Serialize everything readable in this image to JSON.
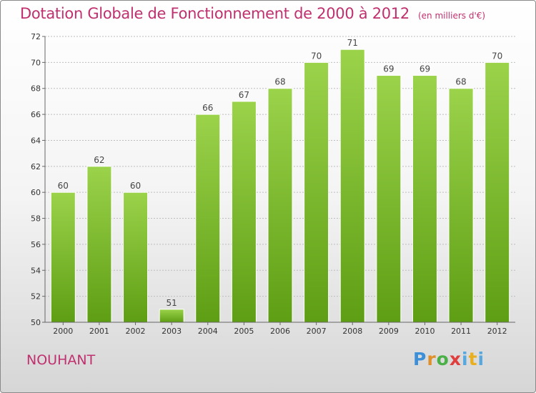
{
  "title": "Dotation Globale de Fonctionnement de 2000 à 2012",
  "unit_note": "(en milliers d'€)",
  "place": "NOUHANT",
  "logo": {
    "text": "Proxiti",
    "letters": [
      "P",
      "r",
      "o",
      "x",
      "i",
      "t",
      "i"
    ]
  },
  "colors": {
    "title": "#c0306e",
    "bar_top": "#9bd34b",
    "bar_bottom": "#5e9e14"
  },
  "chart_data": {
    "type": "bar",
    "title": "Dotation Globale de Fonctionnement de 2000 à 2012",
    "xlabel": "",
    "ylabel": "",
    "categories": [
      "2000",
      "2001",
      "2002",
      "2003",
      "2004",
      "2005",
      "2006",
      "2007",
      "2008",
      "2009",
      "2010",
      "2011",
      "2012"
    ],
    "values": [
      60,
      62,
      60,
      51,
      66,
      67,
      68,
      70,
      71,
      69,
      69,
      68,
      70
    ],
    "ylim": [
      50,
      72
    ],
    "yticks": [
      50,
      52,
      54,
      56,
      58,
      60,
      62,
      64,
      66,
      68,
      70,
      72
    ],
    "grid": true,
    "legend": "none"
  }
}
